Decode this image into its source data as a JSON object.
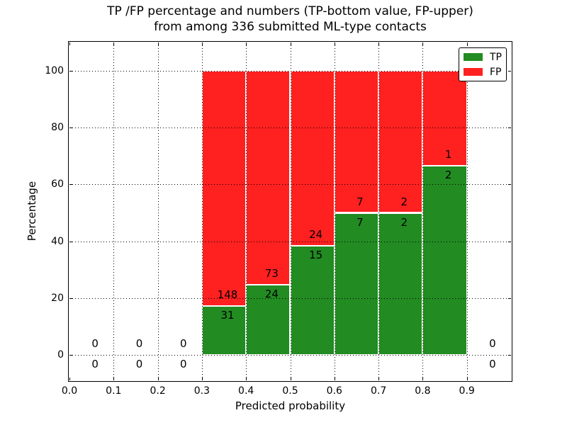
{
  "chart_data": {
    "type": "bar",
    "stacked": true,
    "normalized_to_percent": true,
    "title_line1": "TP /FP percentage and numbers (TP-bottom value, FP-upper)",
    "title_line2": "from among 336 submitted ML-type contacts",
    "xlabel": "Predicted probability",
    "ylabel": "Percentage",
    "total_contacts": 336,
    "xlim": [
      0.0,
      1.0
    ],
    "ylim": [
      -9,
      110
    ],
    "x_ticks": [
      0.0,
      0.1,
      0.2,
      0.3,
      0.4,
      0.5,
      0.6,
      0.7,
      0.8,
      0.9
    ],
    "x_tick_labels": [
      "0.0",
      "0.1",
      "0.2",
      "0.3",
      "0.4",
      "0.5",
      "0.6",
      "0.7",
      "0.8",
      "0.9"
    ],
    "y_ticks": [
      0,
      20,
      40,
      60,
      80,
      100
    ],
    "y_tick_labels": [
      "0",
      "20",
      "40",
      "60",
      "80",
      "100"
    ],
    "grid": true,
    "grid_style": "dotted",
    "legend_position": "upper right",
    "colors": {
      "tp": "#228b22",
      "fp": "#ff2020"
    },
    "legend": [
      {
        "label": "TP",
        "color": "#228b22"
      },
      {
        "label": "FP",
        "color": "#ff2020"
      }
    ],
    "bins": [
      {
        "x0": 0.0,
        "x1": 0.1,
        "tp": 0,
        "fp": 0,
        "tp_pct": 0,
        "fp_pct": 0
      },
      {
        "x0": 0.1,
        "x1": 0.2,
        "tp": 0,
        "fp": 0,
        "tp_pct": 0,
        "fp_pct": 0
      },
      {
        "x0": 0.2,
        "x1": 0.3,
        "tp": 0,
        "fp": 0,
        "tp_pct": 0,
        "fp_pct": 0
      },
      {
        "x0": 0.3,
        "x1": 0.4,
        "tp": 31,
        "fp": 148,
        "tp_pct": 17.3,
        "fp_pct": 82.7
      },
      {
        "x0": 0.4,
        "x1": 0.5,
        "tp": 24,
        "fp": 73,
        "tp_pct": 24.7,
        "fp_pct": 75.3
      },
      {
        "x0": 0.5,
        "x1": 0.6,
        "tp": 15,
        "fp": 24,
        "tp_pct": 38.5,
        "fp_pct": 61.5
      },
      {
        "x0": 0.6,
        "x1": 0.7,
        "tp": 7,
        "fp": 7,
        "tp_pct": 50.0,
        "fp_pct": 50.0
      },
      {
        "x0": 0.7,
        "x1": 0.8,
        "tp": 2,
        "fp": 2,
        "tp_pct": 50.0,
        "fp_pct": 50.0
      },
      {
        "x0": 0.8,
        "x1": 0.9,
        "tp": 2,
        "fp": 1,
        "tp_pct": 66.7,
        "fp_pct": 33.3
      },
      {
        "x0": 0.9,
        "x1": 1.0,
        "tp": 0,
        "fp": 0,
        "tp_pct": 0,
        "fp_pct": 0
      }
    ]
  }
}
